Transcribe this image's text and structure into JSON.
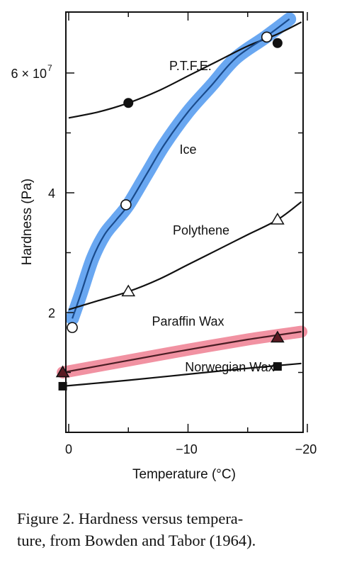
{
  "caption": {
    "line1": "Figure 2. Hardness versus tempera-",
    "line2": "ture, from Bowden and Tabor (1964)."
  },
  "chart_data": {
    "type": "line",
    "title": "",
    "xlabel": "Temperature (°C)",
    "ylabel": "Hardness (Pa)",
    "xlim": [
      0,
      -20
    ],
    "ylim": [
      0,
      70000000.0
    ],
    "x_ticks": [
      0,
      -10,
      -20
    ],
    "x_tick_labels": [
      "0",
      "−10",
      "−20"
    ],
    "y_ticks": [
      20000000.0,
      40000000.0,
      60000000.0
    ],
    "y_tick_labels": [
      "2",
      "4",
      "6 × 10"
    ],
    "y_tick_exponent": "7",
    "grid": false,
    "legend": "none",
    "series": [
      {
        "name": "P.T.F.E.",
        "label_at": [
          -10.2,
          60500000.0
        ],
        "marker": "filled-circle",
        "color": "#111111",
        "highlight": "",
        "curve": [
          [
            0.0,
            52500000.0
          ],
          [
            -2.5,
            53500000.0
          ],
          [
            -5.0,
            55000000.0
          ],
          [
            -7.5,
            57000000.0
          ],
          [
            -10.0,
            59500000.0
          ],
          [
            -12.5,
            62000000.0
          ],
          [
            -15.0,
            64500000.0
          ],
          [
            -17.5,
            66500000.0
          ],
          [
            -19.5,
            68500000.0
          ]
        ],
        "points": [
          [
            -5.0,
            55000000.0
          ],
          [
            -17.5,
            65000000.0
          ]
        ]
      },
      {
        "name": "Ice",
        "label_at": [
          -10.0,
          46500000.0
        ],
        "marker": "open-circle",
        "color": "#1a4b8c",
        "highlight": "#4f98ee",
        "curve": [
          [
            -0.3,
            19000000.0
          ],
          [
            -1.0,
            23000000.0
          ],
          [
            -2.0,
            29000000.0
          ],
          [
            -3.0,
            33000000.0
          ],
          [
            -4.0,
            35500000.0
          ],
          [
            -5.0,
            38000000.0
          ],
          [
            -6.5,
            43000000.0
          ],
          [
            -8.0,
            48000000.0
          ],
          [
            -10.0,
            53500000.0
          ],
          [
            -12.0,
            58000000.0
          ],
          [
            -14.0,
            62500000.0
          ],
          [
            -16.5,
            66000000.0
          ],
          [
            -18.5,
            69000000.0
          ]
        ],
        "points": [
          [
            -0.3,
            17500000.0
          ],
          [
            -4.8,
            38000000.0
          ],
          [
            -16.6,
            66000000.0
          ]
        ]
      },
      {
        "name": "Polythene",
        "label_at": [
          -11.1,
          33000000.0
        ],
        "marker": "open-triangle",
        "color": "#111111",
        "highlight": "",
        "curve": [
          [
            0.0,
            20500000.0
          ],
          [
            -2.5,
            22000000.0
          ],
          [
            -5.0,
            23500000.0
          ],
          [
            -7.5,
            25500000.0
          ],
          [
            -10.0,
            28000000.0
          ],
          [
            -12.5,
            30500000.0
          ],
          [
            -15.0,
            33000000.0
          ],
          [
            -17.5,
            35500000.0
          ],
          [
            -19.5,
            38500000.0
          ]
        ],
        "points": [
          [
            -5.0,
            23500000.0
          ],
          [
            -17.5,
            35500000.0
          ]
        ]
      },
      {
        "name": "Paraffin Wax",
        "label_at": [
          -10.0,
          17800000.0
        ],
        "marker": "filled-triangle",
        "color": "#111111",
        "highlight": "#ee7f92",
        "curve": [
          [
            0.5,
            10000000.0
          ],
          [
            -5.0,
            12000000.0
          ],
          [
            -10.0,
            13800000.0
          ],
          [
            -15.0,
            15500000.0
          ],
          [
            -19.5,
            16800000.0
          ]
        ],
        "points": [
          [
            0.5,
            10000000.0
          ],
          [
            -17.5,
            15800000.0
          ]
        ]
      },
      {
        "name": "Norwegian Wax",
        "label_at": [
          -13.5,
          10200000.0
        ],
        "marker": "filled-square",
        "color": "#111111",
        "highlight": "",
        "curve": [
          [
            0.5,
            7700000.0
          ],
          [
            -5.0,
            8700000.0
          ],
          [
            -10.0,
            9700000.0
          ],
          [
            -15.0,
            10700000.0
          ],
          [
            -19.5,
            11500000.0
          ]
        ],
        "points": [
          [
            0.5,
            7700000.0
          ],
          [
            -17.5,
            11000000.0
          ]
        ]
      }
    ]
  }
}
